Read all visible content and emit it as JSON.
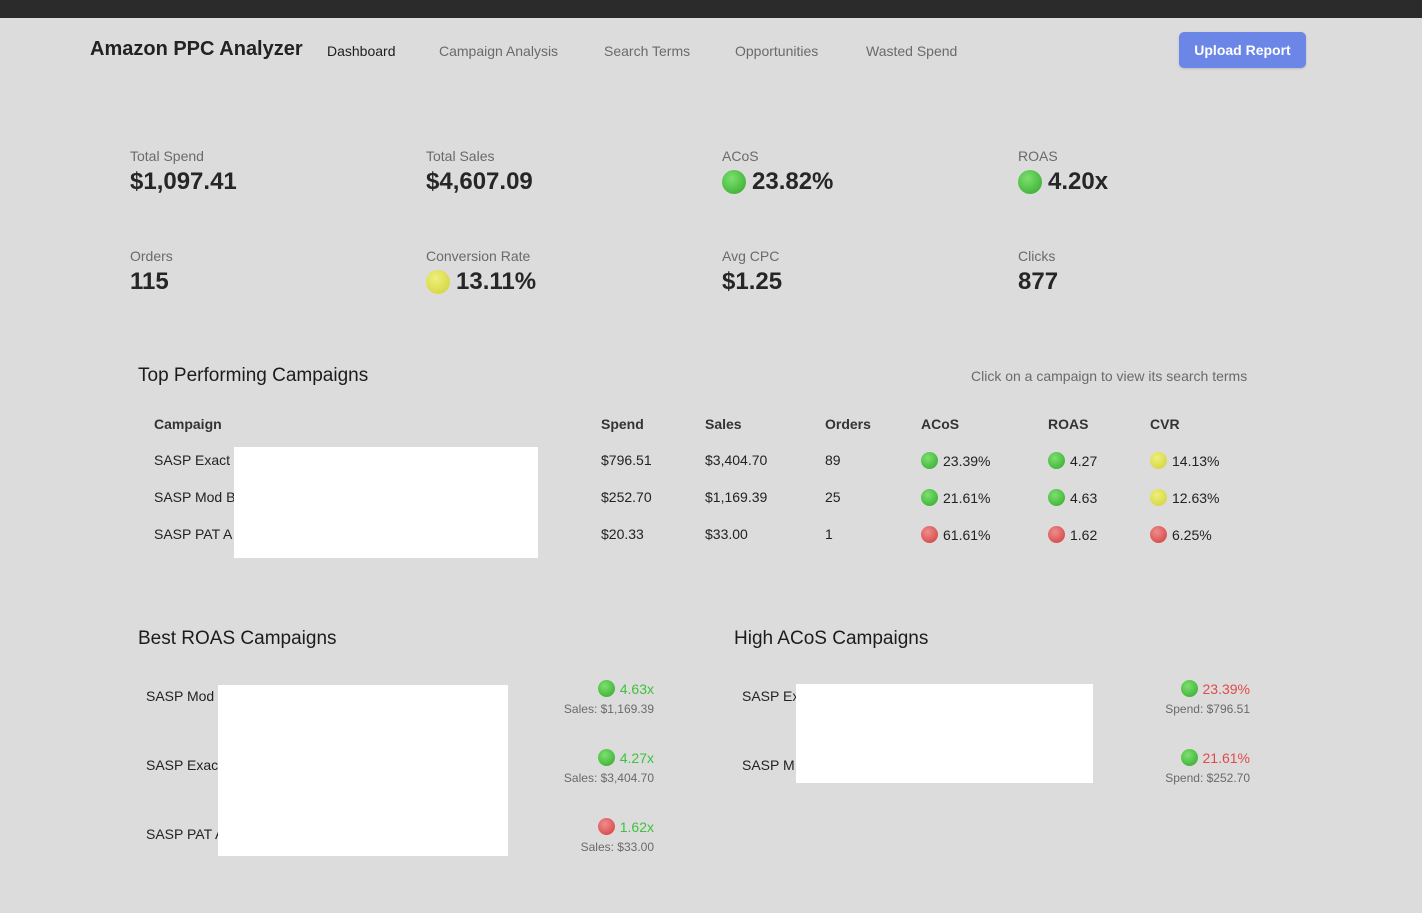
{
  "app": {
    "brand": "Amazon PPC Analyzer",
    "nav": [
      "Dashboard",
      "Campaign Analysis",
      "Search Terms",
      "Opportunities",
      "Wasted Spend"
    ],
    "upload_label": "Upload Report"
  },
  "metrics": {
    "total_spend": {
      "label": "Total Spend",
      "value": "$1,097.41"
    },
    "total_sales": {
      "label": "Total Sales",
      "value": "$4,607.09"
    },
    "acos": {
      "label": "ACoS",
      "value": "23.82%",
      "status": "green"
    },
    "roas": {
      "label": "ROAS",
      "value": "4.20x",
      "status": "green"
    },
    "orders": {
      "label": "Orders",
      "value": "115"
    },
    "conversion": {
      "label": "Conversion Rate",
      "value": "13.11%",
      "status": "yellow"
    },
    "avg_cpc": {
      "label": "Avg CPC",
      "value": "$1.25"
    },
    "clicks": {
      "label": "Clicks",
      "value": "877"
    }
  },
  "top_campaigns": {
    "title": "Top Performing Campaigns",
    "hint": "Click on a campaign to view its search terms",
    "headers": {
      "campaign": "Campaign",
      "spend": "Spend",
      "sales": "Sales",
      "orders": "Orders",
      "acos": "ACoS",
      "roas": "ROAS",
      "cvr": "CVR"
    },
    "rows": [
      {
        "campaign": "SASP Exact",
        "spend": "$796.51",
        "sales": "$3,404.70",
        "orders": "89",
        "acos": "23.39%",
        "acos_status": "green",
        "roas": "4.27",
        "roas_status": "green",
        "cvr": "14.13%",
        "cvr_status": "yellow"
      },
      {
        "campaign": "SASP Mod B",
        "spend": "$252.70",
        "sales": "$1,169.39",
        "orders": "25",
        "acos": "21.61%",
        "acos_status": "green",
        "roas": "4.63",
        "roas_status": "green",
        "cvr": "12.63%",
        "cvr_status": "yellow"
      },
      {
        "campaign": "SASP PAT A",
        "spend": "$20.33",
        "sales": "$33.00",
        "orders": "1",
        "acos": "61.61%",
        "acos_status": "red",
        "roas": "1.62",
        "roas_status": "red",
        "cvr": "6.25%",
        "cvr_status": "red"
      }
    ]
  },
  "best_roas": {
    "title": "Best ROAS Campaigns",
    "items": [
      {
        "name": "SASP Mod",
        "value": "4.63x",
        "status": "green",
        "sub": "Sales: $1,169.39"
      },
      {
        "name": "SASP Exac",
        "value": "4.27x",
        "status": "green",
        "sub": "Sales: $3,404.70"
      },
      {
        "name": "SASP PAT A",
        "value": "1.62x",
        "status": "red",
        "sub": "Sales: $33.00"
      }
    ]
  },
  "high_acos": {
    "title": "High ACoS Campaigns",
    "items": [
      {
        "name": "SASP Ex",
        "value": "23.39%",
        "status": "green",
        "sub": "Spend: $796.51"
      },
      {
        "name": "SASP M",
        "value": "21.61%",
        "status": "green",
        "sub": "Spend: $252.70"
      }
    ]
  },
  "colors": {
    "accent": "#6b86e6",
    "green": "#3ec13e",
    "yellow": "#dede50",
    "red": "#e24a4a"
  }
}
